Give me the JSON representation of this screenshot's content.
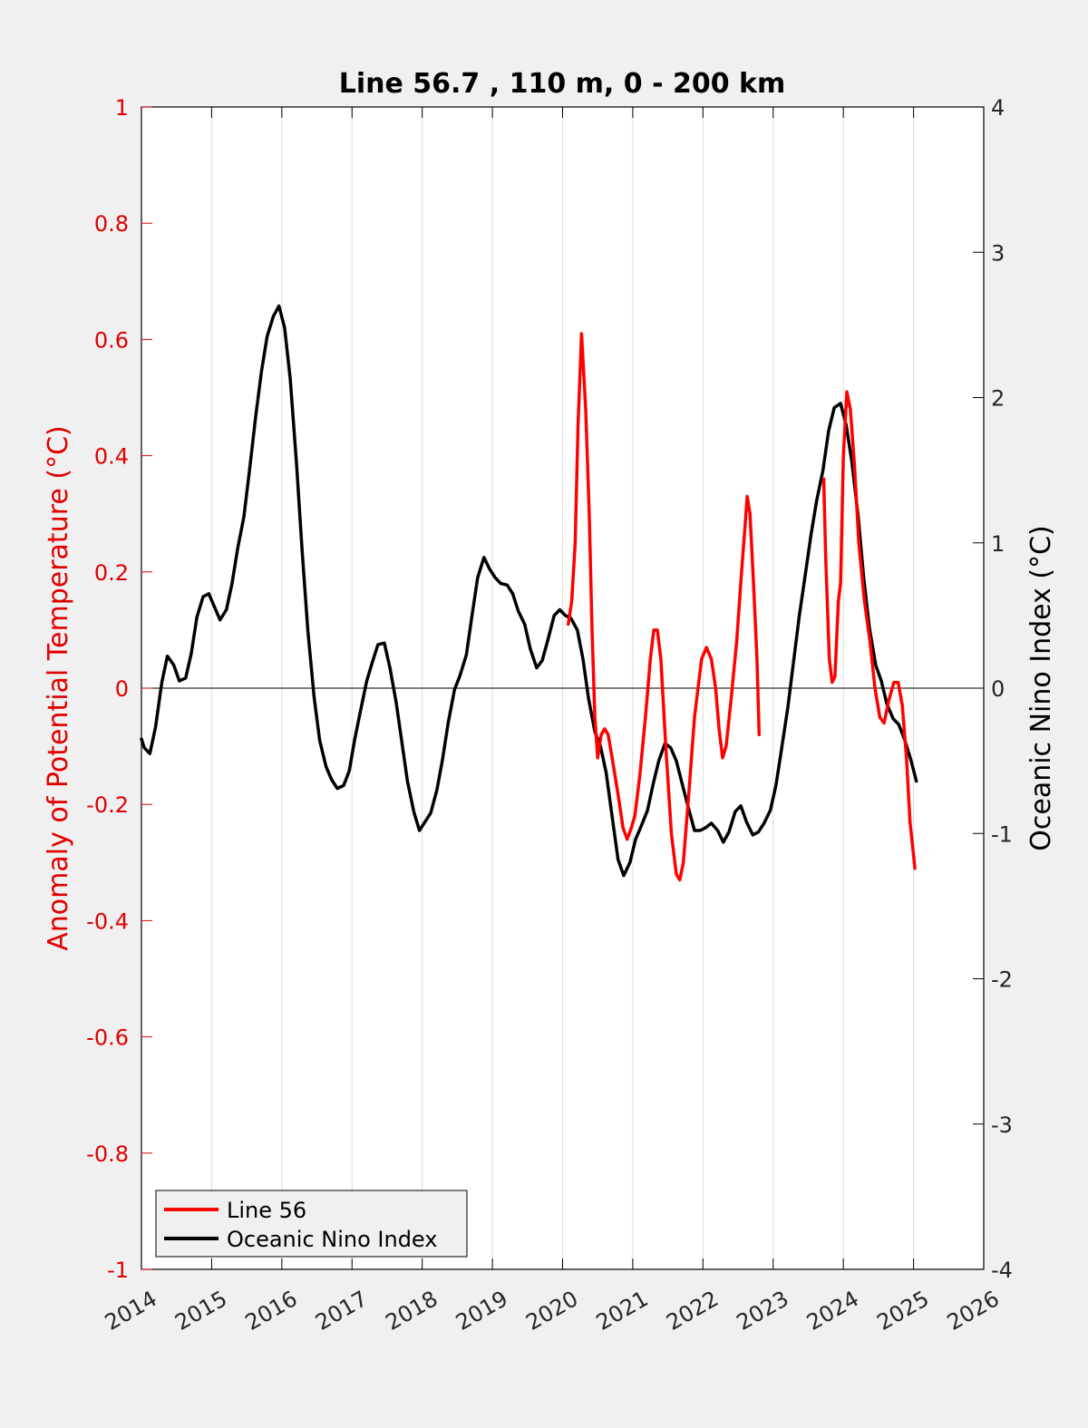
{
  "chart_data": {
    "type": "line",
    "title": "Line 56.7 , 110 m, 0 - 200 km",
    "xlabel": "",
    "ylabel_left": "Anomaly of Potential Temperature (°C)",
    "ylabel_right": "Oceanic Nino Index (°C)",
    "xlim": [
      2014,
      2026
    ],
    "ylim_left": [
      -1,
      1
    ],
    "ylim_right": [
      -4,
      4
    ],
    "x_ticks": [
      "2014",
      "2015",
      "2016",
      "2017",
      "2018",
      "2019",
      "2020",
      "2021",
      "2022",
      "2023",
      "2024",
      "2025",
      "2026"
    ],
    "y_ticks_left": [
      "-1",
      "-0.8",
      "-0.6",
      "-0.4",
      "-0.2",
      "0",
      "0.2",
      "0.4",
      "0.6",
      "0.8",
      "1"
    ],
    "y_ticks_right": [
      "-4",
      "-3",
      "-2",
      "-1",
      "0",
      "1",
      "2",
      "3",
      "4"
    ],
    "grid": "vertical lines at year ticks",
    "zero_line": true,
    "legend_position": "bottom-left",
    "colors": {
      "line56": "#ff0000",
      "oni": "#000000",
      "left_axis": "#e00000",
      "right_axis": "#000000",
      "background": "#f0f0f0",
      "plot_area": "#ffffff"
    },
    "series": [
      {
        "name": "Line 56",
        "axis": "left",
        "segments": [
          [
            [
              2020.08,
              0.11
            ],
            [
              2020.13,
              0.15
            ],
            [
              2020.18,
              0.25
            ],
            [
              2020.22,
              0.45
            ],
            [
              2020.27,
              0.61
            ],
            [
              2020.33,
              0.48
            ],
            [
              2020.38,
              0.3
            ],
            [
              2020.42,
              0.1
            ],
            [
              2020.46,
              -0.05
            ],
            [
              2020.5,
              -0.12
            ],
            [
              2020.55,
              -0.08
            ],
            [
              2020.6,
              -0.07
            ],
            [
              2020.65,
              -0.08
            ],
            [
              2020.72,
              -0.13
            ],
            [
              2020.8,
              -0.19
            ],
            [
              2020.86,
              -0.24
            ],
            [
              2020.92,
              -0.26
            ],
            [
              2020.98,
              -0.24
            ],
            [
              2021.03,
              -0.22
            ],
            [
              2021.1,
              -0.15
            ],
            [
              2021.18,
              -0.05
            ],
            [
              2021.25,
              0.05
            ],
            [
              2021.3,
              0.1
            ],
            [
              2021.35,
              0.1
            ],
            [
              2021.4,
              0.05
            ],
            [
              2021.47,
              -0.1
            ],
            [
              2021.55,
              -0.25
            ],
            [
              2021.62,
              -0.32
            ],
            [
              2021.67,
              -0.33
            ],
            [
              2021.72,
              -0.3
            ],
            [
              2021.8,
              -0.18
            ],
            [
              2021.88,
              -0.05
            ],
            [
              2021.98,
              0.05
            ],
            [
              2022.05,
              0.07
            ],
            [
              2022.12,
              0.05
            ],
            [
              2022.18,
              0.0
            ],
            [
              2022.23,
              -0.07
            ],
            [
              2022.28,
              -0.12
            ],
            [
              2022.33,
              -0.1
            ],
            [
              2022.4,
              -0.02
            ],
            [
              2022.48,
              0.08
            ],
            [
              2022.55,
              0.2
            ],
            [
              2022.6,
              0.28
            ],
            [
              2022.63,
              0.33
            ],
            [
              2022.67,
              0.3
            ],
            [
              2022.72,
              0.18
            ],
            [
              2022.77,
              0.05
            ],
            [
              2022.8,
              -0.08
            ]
          ],
          [
            [
              2023.72,
              0.36
            ],
            [
              2023.75,
              0.22
            ],
            [
              2023.8,
              0.05
            ],
            [
              2023.84,
              0.01
            ],
            [
              2023.88,
              0.02
            ],
            [
              2023.93,
              0.15
            ],
            [
              2023.96,
              0.18
            ],
            [
              2024.0,
              0.4
            ],
            [
              2024.05,
              0.51
            ],
            [
              2024.1,
              0.48
            ],
            [
              2024.16,
              0.38
            ],
            [
              2024.22,
              0.25
            ],
            [
              2024.3,
              0.15
            ],
            [
              2024.38,
              0.08
            ],
            [
              2024.45,
              0.0
            ],
            [
              2024.52,
              -0.05
            ],
            [
              2024.58,
              -0.06
            ],
            [
              2024.65,
              -0.02
            ],
            [
              2024.72,
              0.01
            ],
            [
              2024.78,
              0.01
            ],
            [
              2024.84,
              -0.03
            ],
            [
              2024.9,
              -0.12
            ],
            [
              2024.95,
              -0.23
            ],
            [
              2025.02,
              -0.31
            ]
          ]
        ]
      },
      {
        "name": "Oceanic Nino Index",
        "axis": "right",
        "points": [
          [
            2014.0,
            -0.35
          ],
          [
            2014.04,
            -0.41
          ],
          [
            2014.12,
            -0.45
          ],
          [
            2014.2,
            -0.27
          ],
          [
            2014.29,
            0.04
          ],
          [
            2014.37,
            0.22
          ],
          [
            2014.46,
            0.16
          ],
          [
            2014.54,
            0.05
          ],
          [
            2014.63,
            0.07
          ],
          [
            2014.71,
            0.24
          ],
          [
            2014.79,
            0.49
          ],
          [
            2014.88,
            0.63
          ],
          [
            2014.96,
            0.65
          ],
          [
            2015.04,
            0.56
          ],
          [
            2015.12,
            0.47
          ],
          [
            2015.21,
            0.54
          ],
          [
            2015.29,
            0.72
          ],
          [
            2015.37,
            0.96
          ],
          [
            2015.46,
            1.18
          ],
          [
            2015.54,
            1.5
          ],
          [
            2015.63,
            1.88
          ],
          [
            2015.71,
            2.18
          ],
          [
            2015.79,
            2.42
          ],
          [
            2015.88,
            2.56
          ],
          [
            2015.96,
            2.63
          ],
          [
            2016.04,
            2.48
          ],
          [
            2016.12,
            2.13
          ],
          [
            2016.21,
            1.54
          ],
          [
            2016.29,
            0.94
          ],
          [
            2016.37,
            0.4
          ],
          [
            2016.46,
            -0.06
          ],
          [
            2016.54,
            -0.36
          ],
          [
            2016.63,
            -0.54
          ],
          [
            2016.71,
            -0.63
          ],
          [
            2016.79,
            -0.69
          ],
          [
            2016.88,
            -0.67
          ],
          [
            2016.96,
            -0.57
          ],
          [
            2017.04,
            -0.35
          ],
          [
            2017.12,
            -0.16
          ],
          [
            2017.21,
            0.05
          ],
          [
            2017.29,
            0.18
          ],
          [
            2017.37,
            0.3
          ],
          [
            2017.46,
            0.31
          ],
          [
            2017.54,
            0.14
          ],
          [
            2017.63,
            -0.1
          ],
          [
            2017.71,
            -0.37
          ],
          [
            2017.79,
            -0.64
          ],
          [
            2017.88,
            -0.85
          ],
          [
            2017.96,
            -0.98
          ],
          [
            2018.04,
            -0.92
          ],
          [
            2018.12,
            -0.86
          ],
          [
            2018.21,
            -0.7
          ],
          [
            2018.29,
            -0.49
          ],
          [
            2018.37,
            -0.24
          ],
          [
            2018.46,
            -0.01
          ],
          [
            2018.54,
            0.09
          ],
          [
            2018.63,
            0.23
          ],
          [
            2018.71,
            0.5
          ],
          [
            2018.79,
            0.76
          ],
          [
            2018.88,
            0.9
          ],
          [
            2018.96,
            0.82
          ],
          [
            2019.04,
            0.76
          ],
          [
            2019.12,
            0.72
          ],
          [
            2019.21,
            0.71
          ],
          [
            2019.29,
            0.65
          ],
          [
            2019.37,
            0.53
          ],
          [
            2019.46,
            0.44
          ],
          [
            2019.54,
            0.27
          ],
          [
            2019.63,
            0.14
          ],
          [
            2019.71,
            0.19
          ],
          [
            2019.79,
            0.33
          ],
          [
            2019.88,
            0.5
          ],
          [
            2019.96,
            0.54
          ],
          [
            2020.04,
            0.5
          ],
          [
            2020.12,
            0.48
          ],
          [
            2020.21,
            0.4
          ],
          [
            2020.29,
            0.2
          ],
          [
            2020.37,
            -0.07
          ],
          [
            2020.46,
            -0.3
          ],
          [
            2020.54,
            -0.4
          ],
          [
            2020.62,
            -0.58
          ],
          [
            2020.71,
            -0.9
          ],
          [
            2020.79,
            -1.18
          ],
          [
            2020.87,
            -1.29
          ],
          [
            2020.96,
            -1.2
          ],
          [
            2021.04,
            -1.04
          ],
          [
            2021.12,
            -0.95
          ],
          [
            2021.21,
            -0.84
          ],
          [
            2021.29,
            -0.66
          ],
          [
            2021.37,
            -0.5
          ],
          [
            2021.46,
            -0.38
          ],
          [
            2021.54,
            -0.41
          ],
          [
            2021.62,
            -0.5
          ],
          [
            2021.71,
            -0.67
          ],
          [
            2021.79,
            -0.82
          ],
          [
            2021.88,
            -0.98
          ],
          [
            2021.96,
            -0.98
          ],
          [
            2022.04,
            -0.96
          ],
          [
            2022.12,
            -0.93
          ],
          [
            2022.21,
            -0.98
          ],
          [
            2022.29,
            -1.06
          ],
          [
            2022.37,
            -0.99
          ],
          [
            2022.46,
            -0.85
          ],
          [
            2022.54,
            -0.81
          ],
          [
            2022.62,
            -0.92
          ],
          [
            2022.71,
            -1.01
          ],
          [
            2022.79,
            -0.99
          ],
          [
            2022.87,
            -0.93
          ],
          [
            2022.96,
            -0.84
          ],
          [
            2023.04,
            -0.67
          ],
          [
            2023.12,
            -0.42
          ],
          [
            2023.21,
            -0.13
          ],
          [
            2023.29,
            0.18
          ],
          [
            2023.37,
            0.49
          ],
          [
            2023.46,
            0.79
          ],
          [
            2023.54,
            1.06
          ],
          [
            2023.62,
            1.29
          ],
          [
            2023.71,
            1.5
          ],
          [
            2023.79,
            1.77
          ],
          [
            2023.87,
            1.93
          ],
          [
            2023.96,
            1.96
          ],
          [
            2024.04,
            1.81
          ],
          [
            2024.12,
            1.56
          ],
          [
            2024.21,
            1.19
          ],
          [
            2024.29,
            0.76
          ],
          [
            2024.37,
            0.42
          ],
          [
            2024.46,
            0.16
          ],
          [
            2024.54,
            0.05
          ],
          [
            2024.62,
            -0.11
          ],
          [
            2024.71,
            -0.21
          ],
          [
            2024.79,
            -0.25
          ],
          [
            2024.87,
            -0.35
          ],
          [
            2024.96,
            -0.49
          ],
          [
            2025.04,
            -0.64
          ]
        ]
      }
    ]
  }
}
